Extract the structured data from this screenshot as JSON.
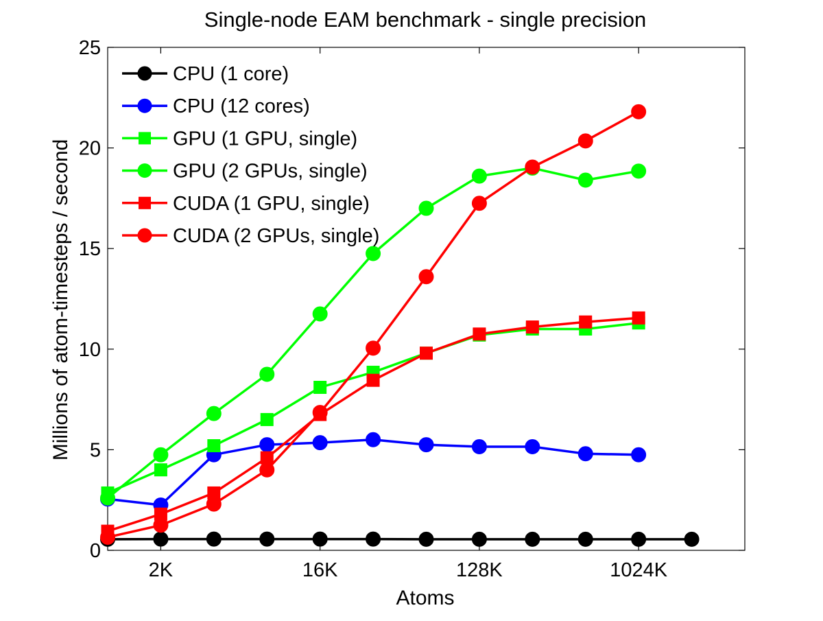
{
  "chart_data": {
    "type": "line",
    "title": "Single-node EAM benchmark - single precision",
    "xlabel": "Atoms",
    "ylabel": "Millions of atom-timesteps / second",
    "x": [
      "1K",
      "2K",
      "4K",
      "8K",
      "16K",
      "32K",
      "64K",
      "128K",
      "256K",
      "512K",
      "1024K",
      "2048K"
    ],
    "x_ticks": [
      "2K",
      "16K",
      "128K",
      "1024K"
    ],
    "x_range": [
      "1K",
      "4096K"
    ],
    "ylim": [
      0,
      25
    ],
    "y_ticks": [
      0,
      5,
      10,
      15,
      20,
      25
    ],
    "grid": false,
    "legend_position": "top-left",
    "series": [
      {
        "name": "CPU (1 core)",
        "color": "#000000",
        "marker": "circle",
        "values": [
          0.55,
          0.56,
          0.56,
          0.56,
          0.56,
          0.56,
          0.55,
          0.55,
          0.55,
          0.55,
          0.55,
          0.55
        ]
      },
      {
        "name": "CPU (12 cores)",
        "color": "#0000ff",
        "marker": "circle",
        "values": [
          2.55,
          2.25,
          4.75,
          5.25,
          5.35,
          5.5,
          5.25,
          5.15,
          5.15,
          4.8,
          4.75,
          null
        ]
      },
      {
        "name": "GPU (1 GPU, single)",
        "color": "#00ff00",
        "marker": "square",
        "values": [
          2.85,
          4.0,
          5.2,
          6.5,
          8.1,
          8.85,
          9.8,
          10.7,
          11.0,
          11.0,
          11.3,
          null
        ]
      },
      {
        "name": "GPU (2 GPUs, single)",
        "color": "#00ff00",
        "marker": "circle",
        "values": [
          2.6,
          4.75,
          6.8,
          8.75,
          11.75,
          14.75,
          17.0,
          18.6,
          19.0,
          18.4,
          18.85,
          null
        ]
      },
      {
        "name": "CUDA (1 GPU, single)",
        "color": "#ff0000",
        "marker": "square",
        "values": [
          0.95,
          1.8,
          2.85,
          4.6,
          6.75,
          8.45,
          9.8,
          10.75,
          11.1,
          11.35,
          11.55,
          null
        ]
      },
      {
        "name": "CUDA (2 GPUs, single)",
        "color": "#ff0000",
        "marker": "circle",
        "values": [
          0.65,
          1.25,
          2.3,
          4.0,
          6.85,
          10.05,
          13.6,
          17.25,
          19.05,
          20.35,
          21.8,
          null
        ]
      }
    ]
  }
}
